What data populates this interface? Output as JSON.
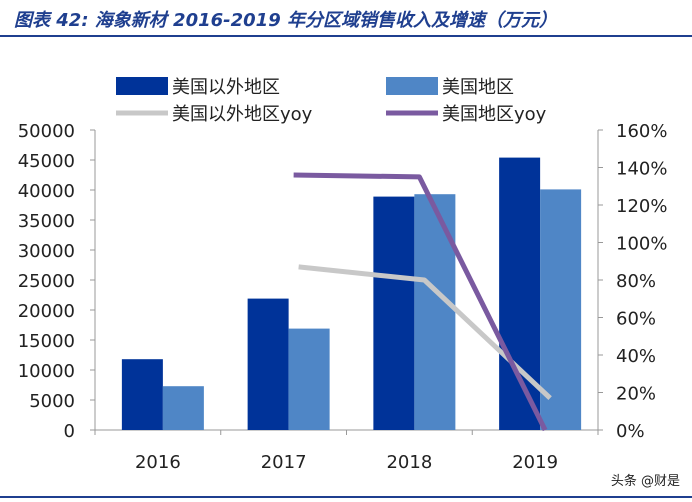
{
  "title": "图表 42:  海象新材 2016-2019 年分区域销售收入及增速（万元）",
  "watermark": "头条 @财是",
  "colors": {
    "header": "#1f3f8f",
    "bar_nonus": "#003399",
    "bar_us": "#4f86c6",
    "line_nonus": "#c8c8c8",
    "line_us": "#7a5aa0"
  },
  "chart_data": {
    "type": "bar",
    "categories": [
      "2016",
      "2017",
      "2018",
      "2019"
    ],
    "series": [
      {
        "name": "美国以外地区",
        "kind": "bar",
        "axis": "left",
        "values": [
          11800,
          21900,
          38900,
          45400
        ]
      },
      {
        "name": "美国地区",
        "kind": "bar",
        "axis": "left",
        "values": [
          7300,
          16900,
          39300,
          40100
        ]
      },
      {
        "name": "美国以外地区yoy",
        "kind": "line",
        "axis": "right",
        "values": [
          null,
          0.87,
          0.8,
          0.17
        ]
      },
      {
        "name": "美国地区yoy",
        "kind": "line",
        "axis": "right",
        "values": [
          null,
          1.36,
          1.35,
          0.0
        ]
      }
    ],
    "left_axis": {
      "ylim": [
        0,
        50000
      ],
      "ticks": [
        "0",
        "5000",
        "10000",
        "15000",
        "20000",
        "25000",
        "30000",
        "35000",
        "40000",
        "45000",
        "50000"
      ]
    },
    "right_axis": {
      "ylim": [
        0,
        1.6
      ],
      "ticks": [
        "0%",
        "20%",
        "40%",
        "60%",
        "80%",
        "100%",
        "120%",
        "140%",
        "160%"
      ]
    },
    "legend_position": "top",
    "grid": false
  }
}
